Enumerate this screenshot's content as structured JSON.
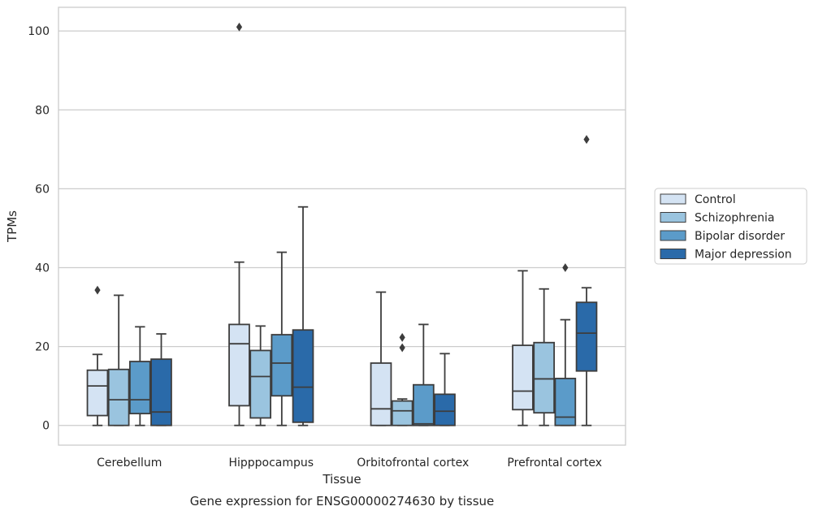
{
  "chart_data": {
    "type": "box",
    "title": "",
    "caption": "Gene expression for ENSG00000274630 by tissue",
    "xlabel": "Tissue",
    "ylabel": "TPMs",
    "ylim": [
      -5,
      106
    ],
    "yticks": [
      0,
      20,
      40,
      60,
      80,
      100
    ],
    "grid": "horizontal",
    "legend_position": "right",
    "categories": [
      "Cerebellum",
      "Hipppocampus",
      "Orbitofrontal cortex",
      "Prefrontal cortex"
    ],
    "series": [
      {
        "name": "Control",
        "color": "#d4e3f3",
        "boxes": [
          {
            "whisker_low": 0,
            "q1": 2.5,
            "median": 10,
            "q3": 14,
            "whisker_high": 18,
            "outliers": [
              34.3
            ]
          },
          {
            "whisker_low": 0,
            "q1": 5,
            "median": 20.7,
            "q3": 25.6,
            "whisker_high": 41.4,
            "outliers": [
              101
            ]
          },
          {
            "whisker_low": 0,
            "q1": 0,
            "median": 4.2,
            "q3": 15.8,
            "whisker_high": 33.8,
            "outliers": []
          },
          {
            "whisker_low": 0,
            "q1": 4,
            "median": 8.7,
            "q3": 20.3,
            "whisker_high": 39.2,
            "outliers": []
          }
        ]
      },
      {
        "name": "Schizophrenia",
        "color": "#9ac4df",
        "boxes": [
          {
            "whisker_low": 0,
            "q1": 0,
            "median": 6.5,
            "q3": 14.2,
            "whisker_high": 33,
            "outliers": []
          },
          {
            "whisker_low": 0,
            "q1": 1.9,
            "median": 12.4,
            "q3": 19,
            "whisker_high": 25.2,
            "outliers": []
          },
          {
            "whisker_low": 0,
            "q1": 0,
            "median": 3.7,
            "q3": 6.2,
            "whisker_high": 6.7,
            "outliers": [
              22.3,
              19.7
            ]
          },
          {
            "whisker_low": 0,
            "q1": 3.2,
            "median": 11.8,
            "q3": 21,
            "whisker_high": 34.6,
            "outliers": []
          }
        ]
      },
      {
        "name": "Bipolar disorder",
        "color": "#5b9bc9",
        "boxes": [
          {
            "whisker_low": 0,
            "q1": 3,
            "median": 6.5,
            "q3": 16.2,
            "whisker_high": 25,
            "outliers": []
          },
          {
            "whisker_low": 0,
            "q1": 7.5,
            "median": 15.8,
            "q3": 23,
            "whisker_high": 43.9,
            "outliers": []
          },
          {
            "whisker_low": 0,
            "q1": 0,
            "median": 0.4,
            "q3": 10.3,
            "whisker_high": 25.6,
            "outliers": []
          },
          {
            "whisker_low": 0,
            "q1": 0,
            "median": 2.1,
            "q3": 11.9,
            "whisker_high": 26.8,
            "outliers": [
              40
            ]
          }
        ]
      },
      {
        "name": "Major depression",
        "color": "#2a6aa9",
        "boxes": [
          {
            "whisker_low": 0,
            "q1": 0,
            "median": 3.4,
            "q3": 16.8,
            "whisker_high": 23.2,
            "outliers": []
          },
          {
            "whisker_low": 0,
            "q1": 0.8,
            "median": 9.7,
            "q3": 24.2,
            "whisker_high": 55.4,
            "outliers": []
          },
          {
            "whisker_low": 0,
            "q1": 0,
            "median": 3.6,
            "q3": 7.9,
            "whisker_high": 18.2,
            "outliers": []
          },
          {
            "whisker_low": 0,
            "q1": 13.8,
            "median": 23.4,
            "q3": 31.2,
            "whisker_high": 34.9,
            "outliers": [
              72.5
            ]
          }
        ]
      }
    ]
  }
}
